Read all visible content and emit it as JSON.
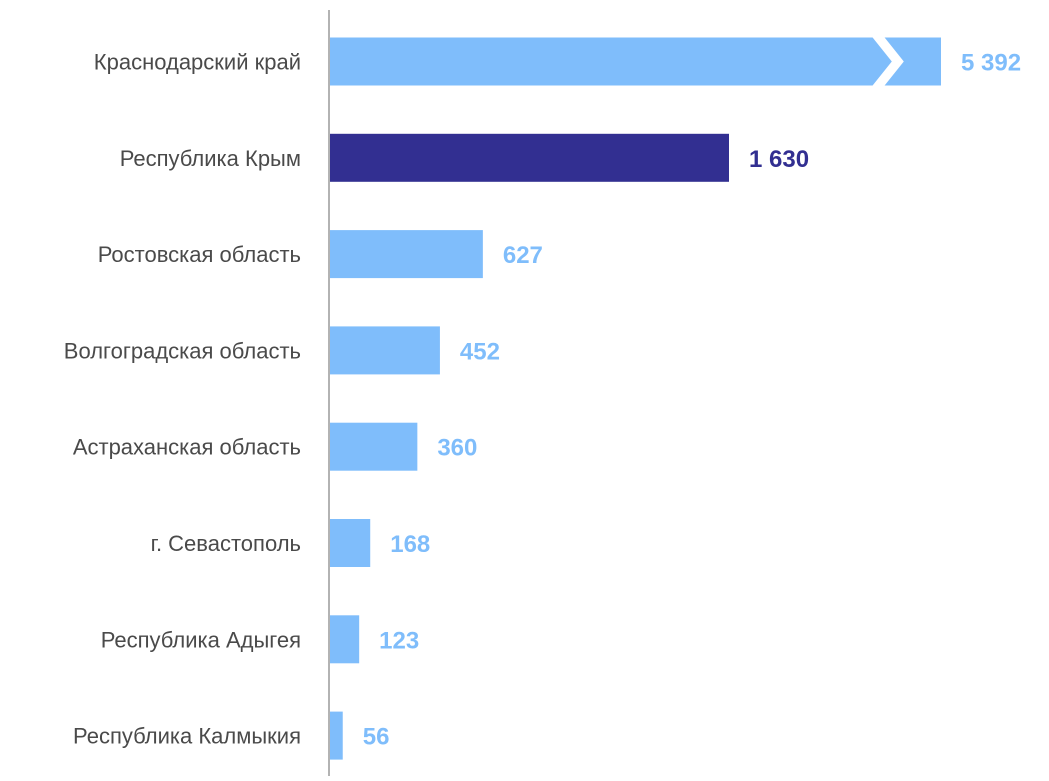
{
  "chart_data": {
    "type": "bar",
    "orientation": "horizontal",
    "title": "",
    "xlabel": "",
    "ylabel": "",
    "categories": [
      "Краснодарский край",
      "Республика Крым",
      "Ростовская область",
      "Волгоградская область",
      "Астраханская область",
      "г. Севастополь",
      "Республика Адыгея",
      "Республика Калмыкия"
    ],
    "values": [
      5392,
      1630,
      627,
      452,
      360,
      168,
      123,
      56
    ],
    "value_labels": [
      "5 392",
      "1 630",
      "627",
      "452",
      "360",
      "168",
      "123",
      "56"
    ],
    "axis_break_on_category": "Краснодарский край",
    "highlight_category": "Республика Крым",
    "colors": {
      "default_bar": "#7fbdfb",
      "highlight_bar": "#322f91",
      "default_label": "#7fbdfb",
      "highlight_label": "#322f91",
      "category_text": "#4a4a4a",
      "axis_line": "#b3b3b3"
    },
    "grid": false,
    "legend": "none"
  }
}
